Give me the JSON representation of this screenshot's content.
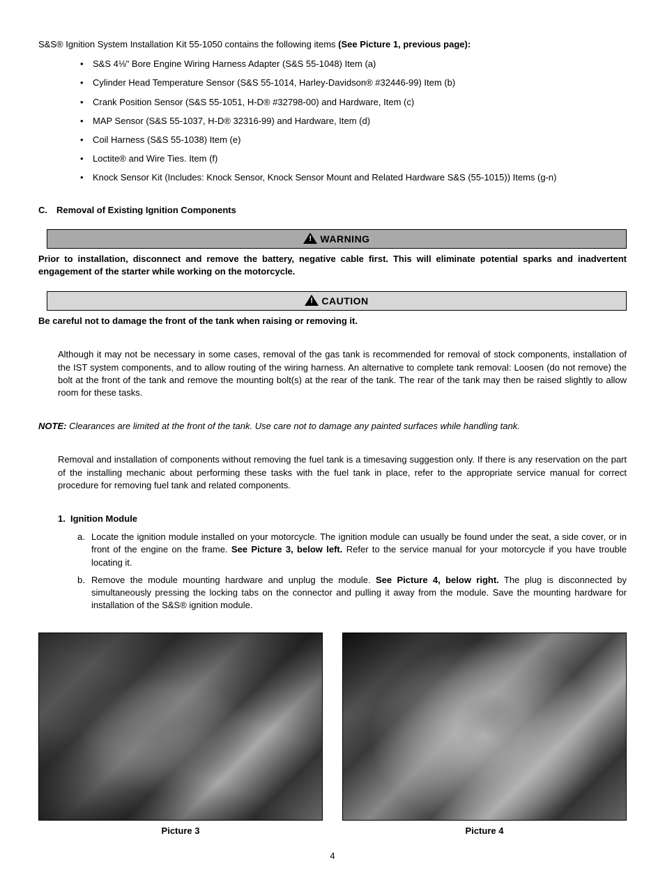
{
  "intro": {
    "prefix": "S&S® Ignition System Installation Kit 55-1050 contains the following items ",
    "bold": "(See Picture 1, previous page):"
  },
  "kit_items": [
    "S&S 4⅛\" Bore Engine Wiring Harness Adapter (S&S 55-1048) Item (a)",
    "Cylinder Head Temperature Sensor (S&S 55-1014, Harley-Davidson® #32446-99) Item (b)",
    "Crank Position Sensor (S&S 55-1051, H-D® #32798-00) and Hardware, Item (c)",
    "MAP Sensor (S&S 55-1037, H-D® 32316-99) and Hardware, Item (d)",
    "Coil Harness (S&S 55-1038) Item (e)",
    "Loctite® and Wire Ties. Item (f)",
    "Knock Sensor Kit (Includes: Knock Sensor, Knock Sensor Mount and Related Hardware S&S (55-1015)) Items (g-n)"
  ],
  "section_c": {
    "letter": "C.",
    "title": "Removal of Existing Ignition Components"
  },
  "warning": {
    "label": "WARNING",
    "text": "Prior to installation, disconnect and remove the battery, negative cable first. This will eliminate potential sparks and inadvertent engagement of the starter while working on the motorcycle."
  },
  "caution": {
    "label": "CAUTION",
    "text": "Be careful not to damage the front of the tank when raising or removing it."
  },
  "para1": "Although it may not be necessary in some cases, removal of the gas tank is recommended for removal of stock components, installation of the IST system components, and to allow routing of the wiring harness. An alternative to complete tank removal: Loosen (do not remove) the bolt at the front of the tank and remove the mounting bolt(s) at the rear of the tank. The rear of the tank may then be raised slightly to allow room for these tasks.",
  "note": {
    "label": "NOTE:",
    "body": " Clearances are limited at the front of the tank. Use care not to damage any painted surfaces while handling tank."
  },
  "para2": "Removal and installation of components without removing the fuel tank is a timesaving suggestion only. If there is any reservation on the part of the installing mechanic about performing these tasks with the fuel tank in place, refer to the appropriate service manual for correct procedure for removing fuel tank and related components.",
  "sub1": {
    "num": "1.",
    "title": "Ignition Module"
  },
  "steps": {
    "a": {
      "marker": "a.",
      "pre": "Locate the ignition module installed on your motorcycle. The ignition module can usually be found under the seat, a side cover, or in front of the engine on the frame. ",
      "bold": "See Picture 3, below left.",
      "post": " Refer to the service manual for your motorcycle if you have trouble locating it."
    },
    "b": {
      "marker": "b.",
      "pre": "Remove the module mounting hardware and unplug the module. ",
      "bold": "See Picture 4, below right.",
      "post": " The plug is disconnected by simultaneously pressing the locking tabs on the connector and pulling it away from the module. Save the mounting hardware for installation of the S&S® ignition module."
    }
  },
  "pictures": {
    "p3": "Picture 3",
    "p4": "Picture 4"
  },
  "page_number": "4",
  "colors": {
    "warning_bg": "#a9a9a9",
    "caution_bg": "#d7d7d7",
    "border": "#000000",
    "text": "#000000",
    "page_bg": "#ffffff"
  },
  "typography": {
    "body_pt": 13,
    "alert_label_pt": 14
  }
}
